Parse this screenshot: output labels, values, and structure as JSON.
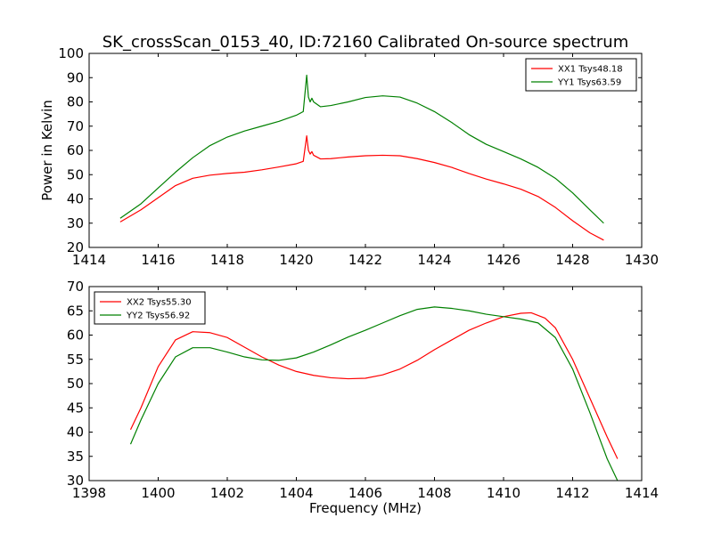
{
  "figure": {
    "title": "SK_crossScan_0153_40, ID:72160 Calibrated On-source spectrum",
    "ylabel": "Power in Kelvin",
    "xlabel": "Frequency (MHz)"
  },
  "chart_data": [
    {
      "type": "line",
      "xlim": [
        1414,
        1430
      ],
      "ylim": [
        20,
        100
      ],
      "xticks": [
        1414,
        1416,
        1418,
        1420,
        1422,
        1424,
        1426,
        1428,
        1430
      ],
      "yticks": [
        20,
        30,
        40,
        50,
        60,
        70,
        80,
        90,
        100
      ],
      "ylabel": "Power in Kelvin",
      "legend_position": "top-right",
      "series": [
        {
          "name": "XX1 Tsys48.18",
          "color": "#ff0000",
          "points": [
            [
              1414.9,
              30.5
            ],
            [
              1415.5,
              35.5
            ],
            [
              1416.0,
              40.5
            ],
            [
              1416.5,
              45.5
            ],
            [
              1417.0,
              48.5
            ],
            [
              1417.5,
              49.8
            ],
            [
              1418.0,
              50.5
            ],
            [
              1418.5,
              51.0
            ],
            [
              1419.0,
              52.0
            ],
            [
              1419.5,
              53.2
            ],
            [
              1420.0,
              54.5
            ],
            [
              1420.2,
              55.5
            ],
            [
              1420.3,
              66.0
            ],
            [
              1420.35,
              60.0
            ],
            [
              1420.4,
              58.5
            ],
            [
              1420.45,
              59.5
            ],
            [
              1420.5,
              58.0
            ],
            [
              1420.7,
              56.5
            ],
            [
              1421.0,
              56.6
            ],
            [
              1421.5,
              57.3
            ],
            [
              1422.0,
              57.8
            ],
            [
              1422.5,
              58.0
            ],
            [
              1423.0,
              57.8
            ],
            [
              1423.5,
              56.6
            ],
            [
              1424.0,
              55.0
            ],
            [
              1424.5,
              53.0
            ],
            [
              1425.0,
              50.5
            ],
            [
              1425.5,
              48.2
            ],
            [
              1426.0,
              46.2
            ],
            [
              1426.5,
              44.0
            ],
            [
              1427.0,
              41.0
            ],
            [
              1427.5,
              36.5
            ],
            [
              1428.0,
              31.0
            ],
            [
              1428.5,
              26.0
            ],
            [
              1428.9,
              23.0
            ]
          ]
        },
        {
          "name": "YY1 Tsys63.59",
          "color": "#008000",
          "points": [
            [
              1414.9,
              32.0
            ],
            [
              1415.5,
              38.0
            ],
            [
              1416.0,
              44.5
            ],
            [
              1416.5,
              51.0
            ],
            [
              1417.0,
              57.0
            ],
            [
              1417.5,
              62.0
            ],
            [
              1418.0,
              65.5
            ],
            [
              1418.5,
              68.0
            ],
            [
              1419.0,
              70.0
            ],
            [
              1419.5,
              72.0
            ],
            [
              1420.0,
              74.5
            ],
            [
              1420.2,
              76.0
            ],
            [
              1420.3,
              91.0
            ],
            [
              1420.35,
              82.0
            ],
            [
              1420.4,
              80.0
            ],
            [
              1420.45,
              81.5
            ],
            [
              1420.5,
              80.0
            ],
            [
              1420.7,
              78.0
            ],
            [
              1421.0,
              78.5
            ],
            [
              1421.5,
              80.0
            ],
            [
              1422.0,
              81.8
            ],
            [
              1422.5,
              82.5
            ],
            [
              1423.0,
              82.0
            ],
            [
              1423.5,
              79.5
            ],
            [
              1424.0,
              76.0
            ],
            [
              1424.5,
              71.5
            ],
            [
              1425.0,
              66.5
            ],
            [
              1425.5,
              62.5
            ],
            [
              1426.0,
              59.5
            ],
            [
              1426.5,
              56.5
            ],
            [
              1427.0,
              53.0
            ],
            [
              1427.5,
              48.5
            ],
            [
              1428.0,
              42.5
            ],
            [
              1428.5,
              35.5
            ],
            [
              1428.9,
              30.0
            ]
          ]
        }
      ]
    },
    {
      "type": "line",
      "xlim": [
        1398,
        1414
      ],
      "ylim": [
        30,
        70
      ],
      "xticks": [
        1398,
        1400,
        1402,
        1404,
        1406,
        1408,
        1410,
        1412,
        1414
      ],
      "yticks": [
        30,
        35,
        40,
        45,
        50,
        55,
        60,
        65,
        70
      ],
      "xlabel": "Frequency (MHz)",
      "legend_position": "top-left",
      "series": [
        {
          "name": "XX2 Tsys55.30",
          "color": "#ff0000",
          "points": [
            [
              1399.2,
              40.5
            ],
            [
              1399.5,
              45.0
            ],
            [
              1400.0,
              53.5
            ],
            [
              1400.5,
              59.0
            ],
            [
              1401.0,
              60.7
            ],
            [
              1401.5,
              60.5
            ],
            [
              1402.0,
              59.5
            ],
            [
              1402.5,
              57.5
            ],
            [
              1403.0,
              55.5
            ],
            [
              1403.5,
              53.8
            ],
            [
              1404.0,
              52.5
            ],
            [
              1404.5,
              51.7
            ],
            [
              1405.0,
              51.2
            ],
            [
              1405.5,
              51.0
            ],
            [
              1406.0,
              51.1
            ],
            [
              1406.5,
              51.8
            ],
            [
              1407.0,
              53.0
            ],
            [
              1407.5,
              54.8
            ],
            [
              1408.0,
              57.0
            ],
            [
              1408.5,
              59.0
            ],
            [
              1409.0,
              61.0
            ],
            [
              1409.5,
              62.5
            ],
            [
              1410.0,
              63.8
            ],
            [
              1410.5,
              64.5
            ],
            [
              1410.8,
              64.6
            ],
            [
              1411.2,
              63.5
            ],
            [
              1411.5,
              61.5
            ],
            [
              1412.0,
              55.0
            ],
            [
              1412.5,
              47.0
            ],
            [
              1413.0,
              39.0
            ],
            [
              1413.3,
              34.5
            ]
          ]
        },
        {
          "name": "YY2 Tsys56.92",
          "color": "#008000",
          "points": [
            [
              1399.2,
              37.5
            ],
            [
              1399.5,
              42.5
            ],
            [
              1400.0,
              50.0
            ],
            [
              1400.5,
              55.5
            ],
            [
              1401.0,
              57.4
            ],
            [
              1401.5,
              57.4
            ],
            [
              1402.0,
              56.5
            ],
            [
              1402.5,
              55.5
            ],
            [
              1403.0,
              54.9
            ],
            [
              1403.5,
              54.8
            ],
            [
              1404.0,
              55.3
            ],
            [
              1404.5,
              56.5
            ],
            [
              1405.0,
              58.0
            ],
            [
              1405.5,
              59.6
            ],
            [
              1406.0,
              61.0
            ],
            [
              1406.5,
              62.5
            ],
            [
              1407.0,
              64.0
            ],
            [
              1407.5,
              65.3
            ],
            [
              1408.0,
              65.8
            ],
            [
              1408.5,
              65.5
            ],
            [
              1409.0,
              65.0
            ],
            [
              1409.5,
              64.3
            ],
            [
              1410.0,
              63.8
            ],
            [
              1410.5,
              63.3
            ],
            [
              1411.0,
              62.5
            ],
            [
              1411.5,
              59.5
            ],
            [
              1412.0,
              53.0
            ],
            [
              1412.5,
              44.0
            ],
            [
              1413.0,
              34.5
            ],
            [
              1413.3,
              30.0
            ]
          ]
        }
      ]
    }
  ]
}
